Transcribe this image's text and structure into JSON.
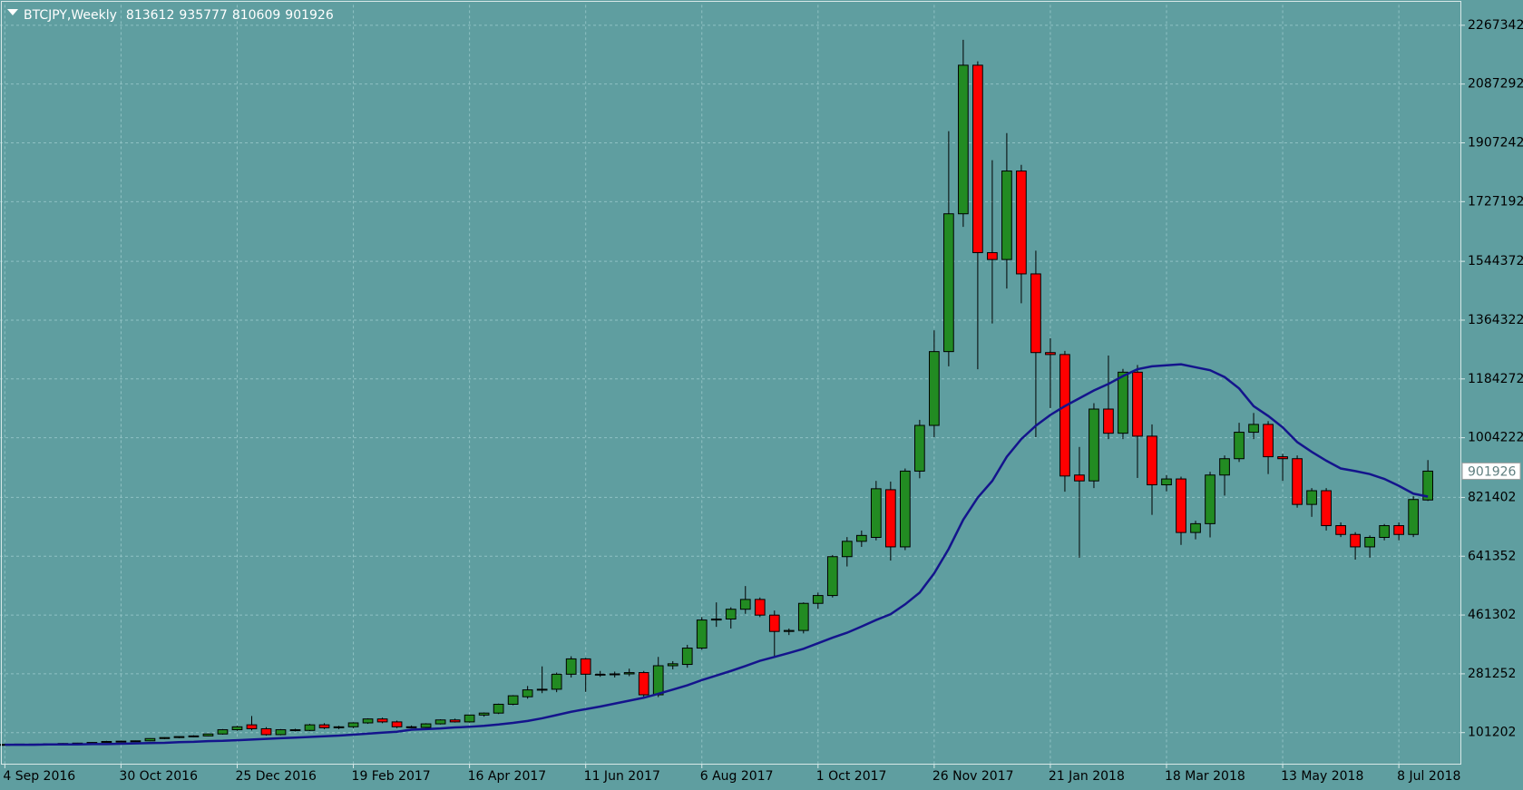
{
  "chart_data": {
    "type": "candlestick",
    "title": "BTCJPY,Weekly",
    "categories": [
      "4 Sep 2016",
      null,
      null,
      null,
      null,
      null,
      null,
      null,
      "30 Oct 2016",
      null,
      null,
      null,
      null,
      null,
      null,
      null,
      "25 Dec 2016",
      null,
      null,
      null,
      null,
      null,
      null,
      null,
      "19 Feb 2017",
      null,
      null,
      null,
      null,
      null,
      null,
      null,
      "16 Apr 2017",
      null,
      null,
      null,
      null,
      null,
      null,
      null,
      "11 Jun 2017",
      null,
      null,
      null,
      null,
      null,
      null,
      null,
      "6 Aug 2017",
      null,
      null,
      null,
      null,
      null,
      null,
      null,
      "1 Oct 2017",
      null,
      null,
      null,
      null,
      null,
      null,
      null,
      "26 Nov 2017",
      null,
      null,
      null,
      null,
      null,
      null,
      null,
      "21 Jan 2018",
      null,
      null,
      null,
      null,
      null,
      null,
      null,
      "18 Mar 2018",
      null,
      null,
      null,
      null,
      null,
      null,
      null,
      "13 May 2018",
      null,
      null,
      null,
      null,
      null,
      null,
      null,
      "8 Jul 2018",
      null,
      null
    ],
    "open": [
      64000,
      65000,
      66000,
      66000,
      67000,
      68000,
      69000,
      71000,
      74000,
      75000,
      76000,
      83000,
      86000,
      89000,
      91000,
      97000,
      110000,
      125000,
      113000,
      95000,
      110000,
      108000,
      125000,
      116000,
      119000,
      131000,
      143000,
      134000,
      119000,
      117000,
      128000,
      140000,
      134000,
      155000,
      161000,
      188000,
      211000,
      232000,
      234000,
      280000,
      327000,
      280000,
      279000,
      281000,
      285000,
      217000,
      306000,
      310000,
      360000,
      446000,
      449000,
      479000,
      509000,
      461000,
      411000,
      414000,
      497000,
      521000,
      640000,
      687000,
      699000,
      845000,
      670000,
      902000,
      1042000,
      1268000,
      1690000,
      2145000,
      1571000,
      1550000,
      1821000,
      1506000,
      1265000,
      1259000,
      890000,
      872000,
      1092000,
      1018000,
      1205000,
      1009000,
      860000,
      878000,
      714000,
      741000,
      890000,
      940000,
      1021000,
      1045000,
      946000,
      940000,
      800000,
      842000,
      735000,
      708000,
      670000,
      699000,
      735000,
      708000,
      813612
    ],
    "high": [
      66000,
      67000,
      67000,
      68000,
      69000,
      70000,
      72000,
      76000,
      77000,
      77000,
      84000,
      87000,
      90000,
      93000,
      98000,
      112000,
      122000,
      152000,
      118000,
      112000,
      113000,
      128000,
      130000,
      122000,
      133000,
      145000,
      147000,
      138000,
      123000,
      130000,
      142000,
      144000,
      156000,
      163000,
      190000,
      216000,
      244000,
      304000,
      285000,
      335000,
      330000,
      290000,
      288000,
      297000,
      290000,
      333000,
      320000,
      370000,
      455000,
      500000,
      485000,
      550000,
      515000,
      475000,
      420000,
      500000,
      530000,
      645000,
      700000,
      720000,
      872000,
      870000,
      910000,
      1059000,
      1333000,
      1943000,
      2223000,
      2157000,
      1854000,
      1937000,
      1840000,
      1577000,
      1309000,
      1270000,
      976000,
      1110000,
      1256000,
      1215000,
      1227000,
      1045000,
      890000,
      885000,
      750000,
      900000,
      950000,
      1050000,
      1080000,
      1055000,
      955000,
      950000,
      850000,
      850000,
      745000,
      715000,
      705000,
      740000,
      745000,
      825000,
      935777
    ],
    "low": [
      63000,
      64000,
      65000,
      65000,
      66000,
      67000,
      68000,
      70000,
      72000,
      73000,
      75000,
      81000,
      84000,
      87000,
      90000,
      95000,
      107000,
      108000,
      92000,
      93000,
      105000,
      106000,
      112000,
      112000,
      115000,
      128000,
      130000,
      115000,
      115000,
      115000,
      126000,
      132000,
      132000,
      150000,
      158000,
      185000,
      205000,
      222000,
      225000,
      270000,
      226000,
      272000,
      270000,
      274000,
      210000,
      210000,
      295000,
      300000,
      355000,
      425000,
      420000,
      465000,
      455000,
      333000,
      400000,
      405000,
      480000,
      515000,
      610000,
      670000,
      690000,
      628000,
      660000,
      880000,
      1006000,
      1223000,
      1650000,
      1214000,
      1354000,
      1461000,
      1416000,
      1006000,
      1095000,
      839000,
      637000,
      850000,
      1000000,
      1000000,
      881000,
      768000,
      840000,
      676000,
      693000,
      699000,
      827000,
      930000,
      1000000,
      893000,
      872000,
      790000,
      762000,
      720000,
      700000,
      631000,
      637000,
      690000,
      690000,
      700000,
      810609
    ],
    "close": [
      65000,
      66000,
      66000,
      67000,
      68000,
      69000,
      71000,
      74000,
      75000,
      76000,
      83000,
      86000,
      89000,
      91000,
      97000,
      110000,
      119000,
      113000,
      95000,
      110000,
      108000,
      125000,
      116000,
      119000,
      131000,
      143000,
      134000,
      119000,
      117000,
      128000,
      140000,
      134000,
      155000,
      161000,
      188000,
      214000,
      232000,
      234000,
      280000,
      327000,
      280000,
      279000,
      281000,
      285000,
      217000,
      306000,
      312000,
      360000,
      446000,
      449000,
      479000,
      509000,
      461000,
      411000,
      414000,
      497000,
      521000,
      640000,
      687000,
      705000,
      848000,
      670000,
      902000,
      1042000,
      1268000,
      1690000,
      2145000,
      1571000,
      1550000,
      1821000,
      1506000,
      1265000,
      1259000,
      887000,
      872000,
      1092000,
      1018000,
      1205000,
      1009000,
      860000,
      878000,
      714000,
      741000,
      890000,
      940000,
      1021000,
      1045000,
      946000,
      940000,
      800000,
      842000,
      735000,
      708000,
      670000,
      699000,
      735000,
      708000,
      815000,
      901926
    ],
    "ma": {
      "color": "#14148c",
      "values": [
        64000,
        64000,
        64000,
        65000,
        65000,
        65000,
        66000,
        66000,
        67000,
        68000,
        69000,
        70000,
        72000,
        73000,
        75000,
        76000,
        78000,
        80000,
        82000,
        84000,
        86000,
        88000,
        90000,
        92000,
        95000,
        98000,
        101000,
        104000,
        110000,
        112000,
        114000,
        117000,
        119000,
        122000,
        126000,
        131000,
        137000,
        145000,
        155000,
        165000,
        173000,
        181000,
        190000,
        199000,
        208000,
        220000,
        233000,
        246000,
        262000,
        276000,
        290000,
        305000,
        321000,
        333000,
        345000,
        358000,
        375000,
        392000,
        407000,
        426000,
        446000,
        464000,
        494000,
        530000,
        589000,
        664000,
        753000,
        821000,
        872000,
        946000,
        1000000,
        1041000,
        1074000,
        1101000,
        1125000,
        1149000,
        1169000,
        1193000,
        1214000,
        1223000,
        1226000,
        1229000,
        1220000,
        1211000,
        1190000,
        1155000,
        1101000,
        1071000,
        1036000,
        991000,
        961000,
        934000,
        910000,
        902000,
        893000,
        878000,
        857000,
        833000,
        824000
      ]
    },
    "up_color": "#228b22",
    "down_color": "#ff0000",
    "ylim": [
      5986,
      2329822
    ],
    "yticks": [
      101202,
      281252,
      461302,
      641352,
      821402,
      1004222,
      1184272,
      1364322,
      1544372,
      1727192,
      1907242,
      2087292,
      2267342
    ],
    "grid": true
  }
}
